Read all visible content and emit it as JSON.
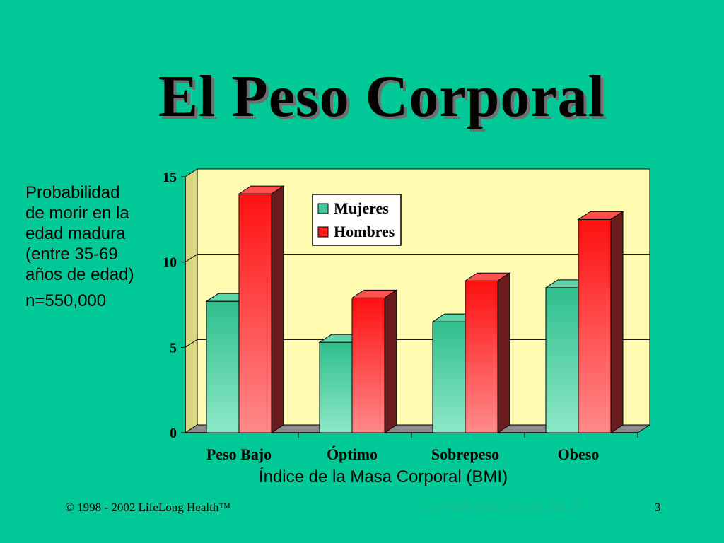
{
  "slide": {
    "title": "El Peso Corporal",
    "side_note": [
      "Probabilidad",
      "de morir en la",
      "edad madura",
      "(entre 35-69",
      "años de edad)"
    ],
    "sample_size": "n=550,000",
    "footer_left": "© 1998 - 2002 LifeLong Health™",
    "footer_right": "J of Hlth Educ, Vol 28, No. 5",
    "slide_number": "3"
  },
  "colors": {
    "background": "#00C896",
    "plot_back": "#FFFBB0",
    "mujeres": "#40C898",
    "hombres": "#FF2020"
  },
  "chart_data": {
    "type": "bar",
    "categories": [
      "Peso Bajo",
      "Óptimo",
      "Sobrepeso",
      "Obeso"
    ],
    "series": [
      {
        "name": "Mujeres",
        "values": [
          7.7,
          5.3,
          6.5,
          8.5
        ]
      },
      {
        "name": "Hombres",
        "values": [
          14.0,
          7.9,
          8.9,
          12.5
        ]
      }
    ],
    "xlabel": "Índice de la Masa Corporal (BMI)",
    "ylabel": "",
    "ylim": [
      0,
      15
    ],
    "yticks": [
      0,
      5,
      10,
      15
    ],
    "grid": true,
    "legend": "top-center",
    "style": "3d"
  }
}
